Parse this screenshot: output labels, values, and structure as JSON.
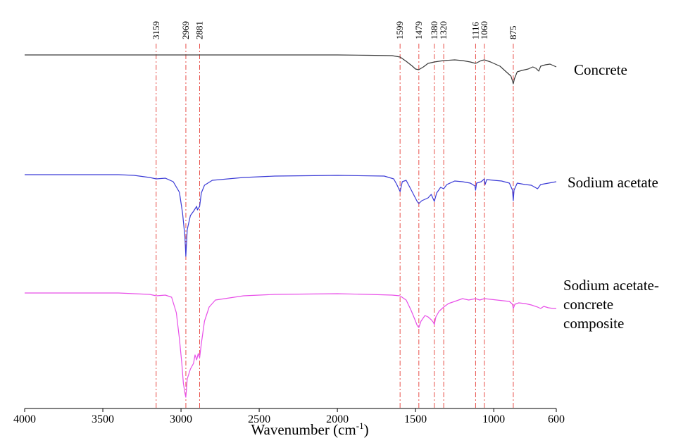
{
  "chart_data": {
    "type": "line",
    "xlabel": "Wavenumber (cm",
    "xlabel_sup": "-1",
    "xlabel_close": ")",
    "xlim": [
      4000,
      600
    ],
    "x_reversed": true,
    "x_ticks": [
      4000,
      3500,
      3000,
      2500,
      2000,
      1500,
      1000,
      600
    ],
    "grid": false,
    "peak_markers": [
      3159,
      2969,
      2881,
      1599,
      1479,
      1380,
      1320,
      1116,
      1060,
      875
    ],
    "peak_marker_color": "#e8504a",
    "series": [
      {
        "name": "Concrete",
        "color": "#3a3a3a",
        "points": [
          [
            4000,
            0
          ],
          [
            3800,
            0
          ],
          [
            3600,
            0
          ],
          [
            3400,
            0
          ],
          [
            3200,
            0
          ],
          [
            3000,
            0
          ],
          [
            2800,
            0
          ],
          [
            2600,
            0
          ],
          [
            2400,
            0
          ],
          [
            2200,
            0
          ],
          [
            2000,
            0
          ],
          [
            1800,
            -0.5
          ],
          [
            1650,
            -1
          ],
          [
            1599,
            -3
          ],
          [
            1560,
            -9
          ],
          [
            1520,
            -16
          ],
          [
            1500,
            -20
          ],
          [
            1480,
            -21
          ],
          [
            1450,
            -17
          ],
          [
            1420,
            -12
          ],
          [
            1380,
            -10
          ],
          [
            1320,
            -8
          ],
          [
            1250,
            -7
          ],
          [
            1200,
            -8
          ],
          [
            1150,
            -10
          ],
          [
            1116,
            -12
          ],
          [
            1080,
            -8
          ],
          [
            1060,
            -7
          ],
          [
            1020,
            -10
          ],
          [
            960,
            -16
          ],
          [
            920,
            -24
          ],
          [
            890,
            -30
          ],
          [
            880,
            -37
          ],
          [
            875,
            -41
          ],
          [
            868,
            -34
          ],
          [
            850,
            -24
          ],
          [
            820,
            -22
          ],
          [
            780,
            -20
          ],
          [
            750,
            -17
          ],
          [
            730,
            -19
          ],
          [
            712,
            -23
          ],
          [
            700,
            -16
          ],
          [
            670,
            -14
          ],
          [
            640,
            -13
          ],
          [
            600,
            -17
          ]
        ]
      },
      {
        "name": "Sodium acetate",
        "color": "#3b3bd6",
        "points": [
          [
            4000,
            0
          ],
          [
            3600,
            0
          ],
          [
            3400,
            0
          ],
          [
            3300,
            -1
          ],
          [
            3200,
            -4
          ],
          [
            3159,
            -6
          ],
          [
            3100,
            -5
          ],
          [
            3050,
            -10
          ],
          [
            3010,
            -25
          ],
          [
            2990,
            -55
          ],
          [
            2975,
            -88
          ],
          [
            2969,
            -116
          ],
          [
            2960,
            -78
          ],
          [
            2940,
            -58
          ],
          [
            2920,
            -52
          ],
          [
            2900,
            -45
          ],
          [
            2895,
            -50
          ],
          [
            2881,
            -45
          ],
          [
            2870,
            -26
          ],
          [
            2850,
            -15
          ],
          [
            2800,
            -8
          ],
          [
            2600,
            -4
          ],
          [
            2400,
            -2
          ],
          [
            2000,
            -1
          ],
          [
            1700,
            -2
          ],
          [
            1640,
            -6
          ],
          [
            1620,
            -14
          ],
          [
            1599,
            -24
          ],
          [
            1585,
            -10
          ],
          [
            1560,
            -8
          ],
          [
            1520,
            -25
          ],
          [
            1490,
            -38
          ],
          [
            1479,
            -41
          ],
          [
            1460,
            -37
          ],
          [
            1420,
            -33
          ],
          [
            1400,
            -28
          ],
          [
            1380,
            -38
          ],
          [
            1365,
            -26
          ],
          [
            1340,
            -18
          ],
          [
            1320,
            -20
          ],
          [
            1300,
            -14
          ],
          [
            1250,
            -9
          ],
          [
            1200,
            -10
          ],
          [
            1150,
            -12
          ],
          [
            1120,
            -16
          ],
          [
            1116,
            -22
          ],
          [
            1110,
            -12
          ],
          [
            1080,
            -10
          ],
          [
            1060,
            -6
          ],
          [
            1055,
            -14
          ],
          [
            1045,
            -7
          ],
          [
            1000,
            -8
          ],
          [
            950,
            -9
          ],
          [
            900,
            -12
          ],
          [
            880,
            -22
          ],
          [
            875,
            -37
          ],
          [
            870,
            -22
          ],
          [
            850,
            -12
          ],
          [
            800,
            -14
          ],
          [
            760,
            -15
          ],
          [
            720,
            -20
          ],
          [
            700,
            -14
          ],
          [
            650,
            -12
          ],
          [
            600,
            -10
          ]
        ]
      },
      {
        "name": "Sodium acetate-concrete composite",
        "color": "#e84fe8",
        "points": [
          [
            4000,
            0
          ],
          [
            3600,
            0
          ],
          [
            3400,
            0
          ],
          [
            3200,
            -2
          ],
          [
            3159,
            -4
          ],
          [
            3100,
            -3
          ],
          [
            3060,
            -6
          ],
          [
            3030,
            -28
          ],
          [
            3010,
            -65
          ],
          [
            2995,
            -100
          ],
          [
            2985,
            -128
          ],
          [
            2975,
            -142
          ],
          [
            2969,
            -148
          ],
          [
            2960,
            -122
          ],
          [
            2940,
            -108
          ],
          [
            2920,
            -100
          ],
          [
            2910,
            -88
          ],
          [
            2900,
            -95
          ],
          [
            2890,
            -86
          ],
          [
            2881,
            -92
          ],
          [
            2870,
            -72
          ],
          [
            2850,
            -40
          ],
          [
            2820,
            -20
          ],
          [
            2780,
            -10
          ],
          [
            2600,
            -4
          ],
          [
            2400,
            -2
          ],
          [
            2000,
            -1
          ],
          [
            1800,
            -2
          ],
          [
            1650,
            -3
          ],
          [
            1600,
            -4
          ],
          [
            1560,
            -10
          ],
          [
            1530,
            -24
          ],
          [
            1500,
            -40
          ],
          [
            1490,
            -46
          ],
          [
            1479,
            -49
          ],
          [
            1465,
            -40
          ],
          [
            1440,
            -32
          ],
          [
            1420,
            -34
          ],
          [
            1400,
            -38
          ],
          [
            1385,
            -42
          ],
          [
            1380,
            -45
          ],
          [
            1370,
            -34
          ],
          [
            1350,
            -26
          ],
          [
            1320,
            -20
          ],
          [
            1290,
            -15
          ],
          [
            1250,
            -12
          ],
          [
            1200,
            -8
          ],
          [
            1160,
            -10
          ],
          [
            1116,
            -8
          ],
          [
            1090,
            -10
          ],
          [
            1060,
            -8
          ],
          [
            1020,
            -9
          ],
          [
            980,
            -10
          ],
          [
            940,
            -11
          ],
          [
            900,
            -12
          ],
          [
            880,
            -16
          ],
          [
            875,
            -22
          ],
          [
            865,
            -16
          ],
          [
            840,
            -14
          ],
          [
            800,
            -15
          ],
          [
            760,
            -17
          ],
          [
            720,
            -20
          ],
          [
            700,
            -22
          ],
          [
            680,
            -19
          ],
          [
            650,
            -21
          ],
          [
            620,
            -22
          ],
          [
            600,
            -22
          ]
        ]
      }
    ]
  }
}
